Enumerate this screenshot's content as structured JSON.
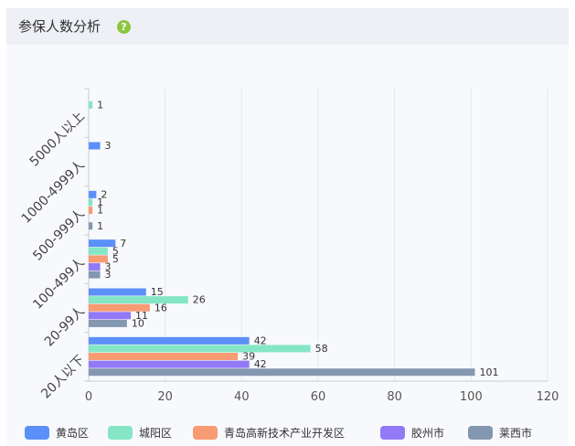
{
  "panel": {
    "title": "参保人数分析",
    "help_icon": "help-icon",
    "help_glyph": "?"
  },
  "chart_data": {
    "type": "bar",
    "orientation": "horizontal",
    "categories": [
      "20人以下",
      "20-99人",
      "100-499人",
      "500-999人",
      "1000-4999人",
      "5000人以上"
    ],
    "series": [
      {
        "name": "黄岛区",
        "color": "#5b8ff9",
        "values": [
          42,
          15,
          7,
          2,
          3,
          null
        ]
      },
      {
        "name": "城阳区",
        "color": "#84e6c4",
        "values": [
          58,
          26,
          5,
          1,
          null,
          1
        ]
      },
      {
        "name": "青岛高新技术产业开发区",
        "color": "#f89b72",
        "values": [
          39,
          16,
          5,
          1,
          null,
          null
        ]
      },
      {
        "name": "胶州市",
        "color": "#9179f8",
        "values": [
          42,
          11,
          3,
          null,
          null,
          null
        ]
      },
      {
        "name": "莱西市",
        "color": "#8497b0",
        "values": [
          101,
          10,
          3,
          1,
          null,
          null
        ]
      }
    ],
    "xlim": [
      0,
      120
    ],
    "x_ticks": [
      "0",
      "20",
      "40",
      "60",
      "80",
      "100",
      "120"
    ],
    "grid": true,
    "legend_position": "bottom"
  }
}
